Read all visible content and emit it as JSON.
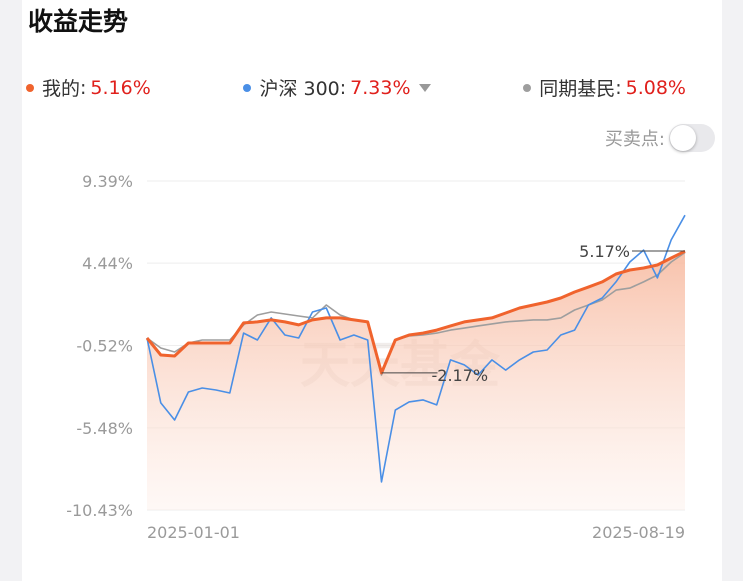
{
  "chart_data": {
    "type": "line",
    "title": "收益走势",
    "separator": ":",
    "toggle_label": "买卖点:",
    "watermark": "天天基金",
    "categories": [
      "2025-01-01",
      null,
      null,
      null,
      null,
      null,
      null,
      null,
      null,
      null,
      null,
      null,
      null,
      null,
      null,
      null,
      null,
      null,
      null,
      null,
      null,
      null,
      null,
      null,
      null,
      null,
      null,
      null,
      null,
      null,
      null,
      null,
      null,
      null,
      null,
      null,
      null,
      null,
      null,
      "2025-08-19"
    ],
    "series": [
      {
        "name": "我的",
        "color": "#f0632d",
        "legend_value": "5.16%",
        "values": [
          -0.07,
          -1.09,
          -1.15,
          -0.37,
          -0.37,
          -0.37,
          -0.37,
          0.84,
          0.9,
          1.02,
          0.9,
          0.72,
          1.02,
          1.14,
          1.14,
          1.02,
          0.9,
          -2.17,
          -0.19,
          0.11,
          0.23,
          0.41,
          0.66,
          0.9,
          1.02,
          1.14,
          1.44,
          1.74,
          1.92,
          2.1,
          2.34,
          2.7,
          3.0,
          3.31,
          3.79,
          4.03,
          4.15,
          4.33,
          4.75,
          5.16
        ]
      },
      {
        "name": "沪深 300",
        "color": "#4a8fe6",
        "legend_value": "7.33%",
        "values": [
          -0.07,
          -3.98,
          -5.01,
          -3.32,
          -3.08,
          -3.2,
          -3.38,
          0.23,
          -0.19,
          1.14,
          0.11,
          -0.07,
          1.5,
          1.74,
          -0.19,
          0.11,
          -0.19,
          -8.74,
          -4.41,
          -3.92,
          -3.8,
          -4.1,
          -1.39,
          -1.69,
          -2.3,
          -1.39,
          -2.0,
          -1.39,
          -0.91,
          -0.79,
          0.11,
          0.41,
          1.92,
          2.34,
          3.31,
          4.51,
          5.23,
          3.55,
          5.84,
          7.33
        ]
      },
      {
        "name": "同期基民",
        "color": "#9e9e9e",
        "legend_value": "5.08%",
        "values": [
          -0.07,
          -0.67,
          -0.91,
          -0.37,
          -0.19,
          -0.19,
          -0.19,
          0.72,
          1.32,
          1.5,
          1.38,
          1.26,
          1.14,
          1.92,
          1.32,
          1.02,
          0.9,
          -2.3,
          -0.19,
          0.05,
          0.11,
          0.23,
          0.41,
          0.53,
          0.66,
          0.78,
          0.9,
          0.96,
          1.02,
          1.02,
          1.14,
          1.62,
          1.92,
          2.22,
          2.82,
          2.94,
          3.31,
          3.73,
          4.51,
          5.08
        ]
      }
    ],
    "ylim": [
      -10.43,
      9.39
    ],
    "yticks": [
      {
        "value": -10.43,
        "label": "-10.43%"
      },
      {
        "value": -5.48,
        "label": "-5.48%"
      },
      {
        "value": -0.52,
        "label": "-0.52%"
      },
      {
        "value": 4.44,
        "label": "4.44%"
      },
      {
        "value": 9.39,
        "label": "9.39%"
      }
    ],
    "grid": true,
    "annotations": [
      {
        "label": "5.17%",
        "value": 5.17,
        "kind": "max"
      },
      {
        "label": "-2.17%",
        "value": -2.17,
        "kind": "min"
      }
    ]
  }
}
